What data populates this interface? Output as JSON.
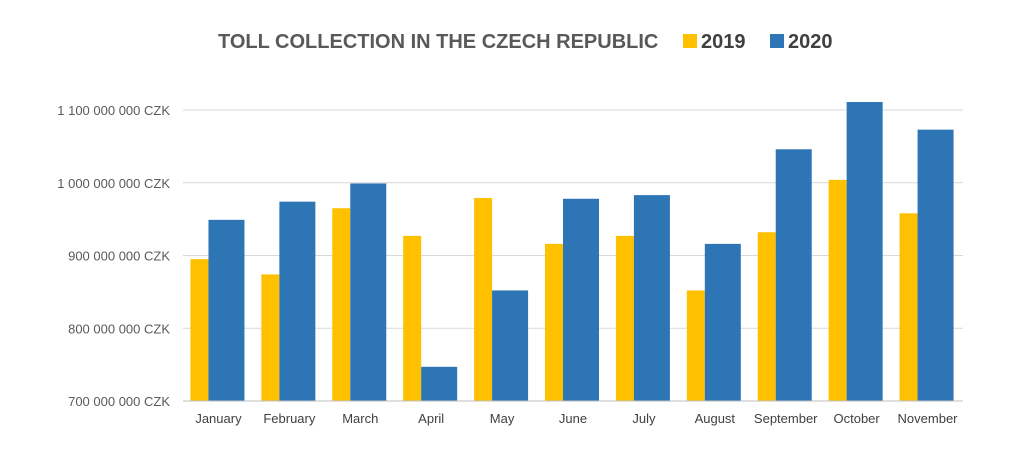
{
  "chart_data": {
    "type": "bar",
    "title": "TOLL COLLECTION IN THE CZECH REPUBLIC",
    "xlabel": "",
    "ylabel": "",
    "categories": [
      "January",
      "February",
      "March",
      "April",
      "May",
      "June",
      "July",
      "August",
      "September",
      "October",
      "November"
    ],
    "series": [
      {
        "name": "2019",
        "color": "#FFC000",
        "values": [
          895000000,
          874000000,
          965000000,
          927000000,
          979000000,
          916000000,
          927000000,
          852000000,
          932000000,
          1004000000,
          958000000
        ]
      },
      {
        "name": "2020",
        "color": "#2E75B6",
        "values": [
          949000000,
          974000000,
          999000000,
          747000000,
          852000000,
          978000000,
          983000000,
          916000000,
          1046000000,
          1111000000,
          1073000000
        ]
      }
    ],
    "ylim": [
      700000000,
      1100000000
    ],
    "yticks": [
      700000000,
      800000000,
      900000000,
      1000000000,
      1100000000
    ],
    "ytick_labels": [
      "700 000 000 CZK",
      "800 000 000 CZK",
      "900 000 000 CZK",
      "1 000 000 000 CZK",
      "1 100 000 000 CZK"
    ],
    "grid": true,
    "legend_position": "top-right"
  }
}
